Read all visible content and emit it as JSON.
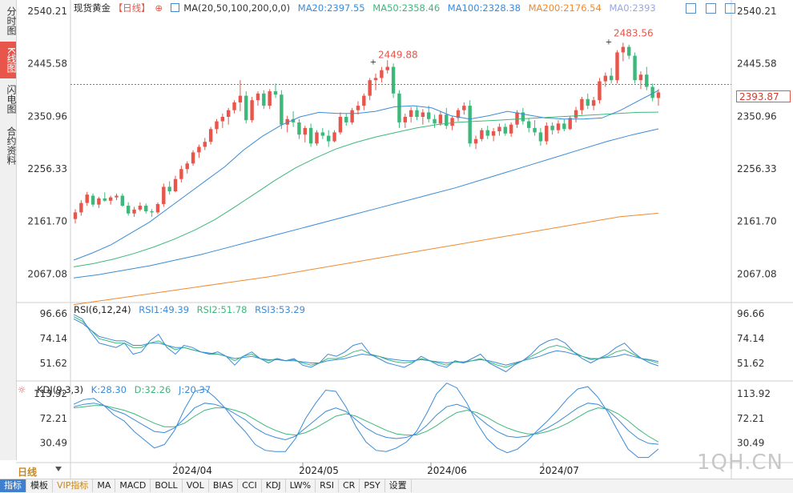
{
  "left_tabs": [
    {
      "label": "分时图",
      "active": false
    },
    {
      "label": "K线图",
      "active": true
    },
    {
      "label": "闪电图",
      "active": false
    },
    {
      "label": "合约资料",
      "active": false
    }
  ],
  "main_legend": {
    "name": "现货黄金",
    "period": "【日线】",
    "ma_label": "MA(20,50,100,200,0,0)",
    "ma20": "MA20:2397.55",
    "ma50": "MA50:2358.46",
    "ma100": "MA100:2328.38",
    "ma200": "MA200:2176.54",
    "ma0": "MA0:2393"
  },
  "rsi_legend": {
    "label": "RSI(6,12,24)",
    "rsi1": "RSI1:49.39",
    "rsi2": "RSI2:51.78",
    "rsi3": "RSI3:53.29"
  },
  "kdj_legend": {
    "label": "KDJ(9,3,3)",
    "k": "K:28.30",
    "d": "D:32.26",
    "j": "J:20.37"
  },
  "price_axis": [
    "2540.21",
    "2445.58",
    "2350.96",
    "2256.33",
    "2161.70",
    "2067.08"
  ],
  "rsi_axis": [
    "96.66",
    "74.14",
    "51.62"
  ],
  "kdj_axis": [
    "113.92",
    "72.21",
    "30.49"
  ],
  "x_axis": [
    "2024/04",
    "2024/05",
    "2024/06",
    "2024/07"
  ],
  "current_price": "2393.87",
  "high_marker": "2483.56",
  "mid_high_marker": "2449.88",
  "period_label": "日线",
  "bottom_tabs": [
    "指标",
    "模板",
    "VIP指标",
    "MA",
    "MACD",
    "BOLL",
    "VOL",
    "BIAS",
    "CCI",
    "KDJ",
    "LW%",
    "RSI",
    "CR",
    "PSY",
    "设置"
  ],
  "watermark": "1QH.CN",
  "colors": {
    "up": "#e8554a",
    "down": "#3db87a",
    "ma20": "#3b8bd8",
    "ma50": "#3db87a",
    "ma100": "#3b8bd8",
    "ma200": "#f08a30",
    "ma0": "#9aa7e0",
    "rsi1": "#3b8bd8",
    "rsi2": "#3db87a",
    "rsi3": "#3b8bd8"
  },
  "chart_data": {
    "type": "candlestick",
    "y_range": [
      2020,
      2540.21
    ],
    "candles": [
      [
        2166,
        2184,
        2158,
        2178
      ],
      [
        2178,
        2200,
        2172,
        2195
      ],
      [
        2195,
        2215,
        2190,
        2210
      ],
      [
        2208,
        2212,
        2188,
        2192
      ],
      [
        2192,
        2206,
        2186,
        2203
      ],
      [
        2203,
        2214,
        2197,
        2199
      ],
      [
        2199,
        2208,
        2192,
        2205
      ],
      [
        2205,
        2212,
        2200,
        2208
      ],
      [
        2208,
        2212,
        2188,
        2190
      ],
      [
        2190,
        2196,
        2172,
        2176
      ],
      [
        2176,
        2188,
        2170,
        2183
      ],
      [
        2183,
        2196,
        2180,
        2190
      ],
      [
        2190,
        2194,
        2176,
        2180
      ],
      [
        2180,
        2184,
        2170,
        2178
      ],
      [
        2178,
        2196,
        2175,
        2193
      ],
      [
        2193,
        2230,
        2188,
        2224
      ],
      [
        2224,
        2234,
        2210,
        2216
      ],
      [
        2216,
        2244,
        2214,
        2238
      ],
      [
        2238,
        2262,
        2232,
        2256
      ],
      [
        2256,
        2270,
        2248,
        2266
      ],
      [
        2266,
        2290,
        2262,
        2286
      ],
      [
        2286,
        2300,
        2276,
        2296
      ],
      [
        2296,
        2312,
        2290,
        2305
      ],
      [
        2305,
        2332,
        2300,
        2328
      ],
      [
        2328,
        2346,
        2320,
        2342
      ],
      [
        2342,
        2356,
        2330,
        2350
      ],
      [
        2350,
        2366,
        2336,
        2362
      ],
      [
        2362,
        2380,
        2356,
        2376
      ],
      [
        2376,
        2416,
        2360,
        2388
      ],
      [
        2388,
        2396,
        2338,
        2344
      ],
      [
        2344,
        2386,
        2340,
        2380
      ],
      [
        2380,
        2396,
        2370,
        2392
      ],
      [
        2392,
        2398,
        2364,
        2370
      ],
      [
        2370,
        2400,
        2364,
        2396
      ],
      [
        2396,
        2410,
        2384,
        2390
      ],
      [
        2390,
        2398,
        2328,
        2336
      ],
      [
        2336,
        2352,
        2322,
        2346
      ],
      [
        2346,
        2360,
        2332,
        2340
      ],
      [
        2340,
        2346,
        2310,
        2318
      ],
      [
        2318,
        2334,
        2304,
        2330
      ],
      [
        2330,
        2338,
        2296,
        2302
      ],
      [
        2302,
        2326,
        2298,
        2322
      ],
      [
        2322,
        2330,
        2310,
        2316
      ],
      [
        2316,
        2326,
        2296,
        2306
      ],
      [
        2306,
        2326,
        2304,
        2322
      ],
      [
        2322,
        2358,
        2318,
        2350
      ],
      [
        2350,
        2356,
        2334,
        2340
      ],
      [
        2340,
        2366,
        2336,
        2362
      ],
      [
        2362,
        2378,
        2354,
        2370
      ],
      [
        2370,
        2392,
        2362,
        2388
      ],
      [
        2388,
        2420,
        2380,
        2416
      ],
      [
        2416,
        2428,
        2398,
        2420
      ],
      [
        2420,
        2440,
        2412,
        2434
      ],
      [
        2434,
        2452,
        2428,
        2440
      ],
      [
        2440,
        2446,
        2384,
        2392
      ],
      [
        2392,
        2398,
        2330,
        2340
      ],
      [
        2340,
        2356,
        2330,
        2350
      ],
      [
        2350,
        2368,
        2340,
        2362
      ],
      [
        2362,
        2368,
        2344,
        2350
      ],
      [
        2350,
        2364,
        2336,
        2358
      ],
      [
        2358,
        2370,
        2340,
        2346
      ],
      [
        2346,
        2354,
        2330,
        2338
      ],
      [
        2338,
        2360,
        2334,
        2354
      ],
      [
        2354,
        2366,
        2328,
        2334
      ],
      [
        2334,
        2352,
        2326,
        2348
      ],
      [
        2348,
        2366,
        2342,
        2362
      ],
      [
        2362,
        2376,
        2354,
        2370
      ],
      [
        2370,
        2380,
        2296,
        2302
      ],
      [
        2302,
        2316,
        2292,
        2310
      ],
      [
        2310,
        2330,
        2306,
        2326
      ],
      [
        2326,
        2334,
        2310,
        2316
      ],
      [
        2316,
        2330,
        2306,
        2324
      ],
      [
        2324,
        2338,
        2316,
        2332
      ],
      [
        2332,
        2338,
        2316,
        2320
      ],
      [
        2320,
        2340,
        2314,
        2336
      ],
      [
        2336,
        2362,
        2330,
        2358
      ],
      [
        2358,
        2366,
        2336,
        2342
      ],
      [
        2342,
        2348,
        2322,
        2330
      ],
      [
        2330,
        2344,
        2316,
        2322
      ],
      [
        2322,
        2330,
        2298,
        2306
      ],
      [
        2306,
        2340,
        2300,
        2334
      ],
      [
        2334,
        2340,
        2318,
        2326
      ],
      [
        2326,
        2344,
        2320,
        2338
      ],
      [
        2338,
        2346,
        2324,
        2328
      ],
      [
        2328,
        2352,
        2326,
        2348
      ],
      [
        2348,
        2368,
        2340,
        2362
      ],
      [
        2362,
        2386,
        2354,
        2382
      ],
      [
        2382,
        2392,
        2364,
        2370
      ],
      [
        2370,
        2386,
        2362,
        2380
      ],
      [
        2380,
        2420,
        2374,
        2414
      ],
      [
        2414,
        2430,
        2404,
        2424
      ],
      [
        2424,
        2438,
        2410,
        2416
      ],
      [
        2416,
        2470,
        2410,
        2466
      ],
      [
        2466,
        2483.56,
        2450,
        2476
      ],
      [
        2476,
        2480,
        2454,
        2460
      ],
      [
        2460,
        2466,
        2410,
        2416
      ],
      [
        2416,
        2432,
        2400,
        2426
      ],
      [
        2426,
        2440,
        2398,
        2404
      ],
      [
        2404,
        2410,
        2378,
        2384
      ],
      [
        2384,
        2400,
        2370,
        2394
      ]
    ],
    "ma20": [
      2092,
      2105,
      2120,
      2140,
      2160,
      2185,
      2210,
      2235,
      2260,
      2290,
      2315,
      2335,
      2350,
      2358,
      2356,
      2356,
      2360,
      2368,
      2370,
      2366,
      2352,
      2346,
      2352,
      2360,
      2354,
      2348,
      2346,
      2346,
      2348,
      2362,
      2380,
      2397.55
    ],
    "ma50": [
      2080,
      2086,
      2094,
      2104,
      2116,
      2130,
      2146,
      2165,
      2188,
      2212,
      2236,
      2258,
      2276,
      2292,
      2304,
      2314,
      2322,
      2330,
      2336,
      2340,
      2342,
      2344,
      2346,
      2348,
      2350,
      2352,
      2354,
      2356,
      2358,
      2358.46
    ],
    "ma100": [
      2060,
      2066,
      2074,
      2082,
      2092,
      2102,
      2114,
      2126,
      2138,
      2150,
      2162,
      2174,
      2186,
      2198,
      2210,
      2222,
      2236,
      2250,
      2264,
      2278,
      2292,
      2306,
      2318,
      2328.38
    ],
    "ma200": [
      2012,
      2022,
      2032,
      2042,
      2052,
      2062,
      2074,
      2086,
      2098,
      2110,
      2122,
      2134,
      2146,
      2158,
      2170,
      2176.54
    ],
    "rsi1": [
      96,
      92,
      80,
      70,
      68,
      66,
      70,
      60,
      62,
      72,
      78,
      66,
      60,
      68,
      66,
      62,
      60,
      62,
      58,
      50,
      58,
      62,
      56,
      52,
      56,
      54,
      56,
      50,
      48,
      52,
      60,
      58,
      62,
      68,
      70,
      60,
      56,
      52,
      50,
      48,
      52,
      58,
      54,
      50,
      48,
      54,
      52,
      56,
      60,
      52,
      48,
      44,
      50,
      54,
      60,
      68,
      72,
      74,
      70,
      62,
      56,
      52,
      56,
      60,
      66,
      70,
      62,
      56,
      52,
      49.39
    ],
    "rsi2": [
      94,
      90,
      82,
      74,
      72,
      70,
      70,
      66,
      66,
      70,
      72,
      68,
      64,
      66,
      64,
      62,
      60,
      60,
      58,
      54,
      58,
      60,
      56,
      54,
      56,
      54,
      55,
      52,
      50,
      52,
      56,
      56,
      58,
      62,
      64,
      60,
      58,
      55,
      53,
      52,
      53,
      56,
      54,
      52,
      50,
      53,
      52,
      54,
      56,
      53,
      50,
      48,
      51,
      54,
      58,
      62,
      66,
      68,
      66,
      62,
      58,
      55,
      56,
      58,
      62,
      64,
      60,
      56,
      54,
      51.78
    ],
    "rsi3": [
      92,
      88,
      82,
      76,
      74,
      72,
      72,
      68,
      68,
      70,
      70,
      68,
      66,
      66,
      64,
      62,
      61,
      60,
      58,
      56,
      57,
      58,
      56,
      55,
      55,
      54,
      54,
      53,
      52,
      52,
      54,
      55,
      56,
      58,
      60,
      59,
      58,
      56,
      55,
      54,
      54,
      55,
      54,
      53,
      52,
      53,
      53,
      54,
      55,
      54,
      52,
      50,
      52,
      54,
      56,
      58,
      61,
      63,
      62,
      60,
      58,
      56,
      56,
      57,
      58,
      60,
      58,
      56,
      55,
      53.29
    ],
    "kdj_k": [
      92,
      96,
      98,
      94,
      86,
      80,
      70,
      60,
      50,
      48,
      56,
      72,
      90,
      98,
      96,
      90,
      80,
      70,
      56,
      46,
      40,
      36,
      42,
      56,
      70,
      84,
      90,
      84,
      70,
      56,
      46,
      40,
      38,
      40,
      46,
      60,
      78,
      92,
      96,
      90,
      76,
      62,
      50,
      42,
      40,
      42,
      48,
      56,
      66,
      78,
      90,
      98,
      96,
      86,
      70,
      52,
      38,
      30,
      28.3
    ],
    "kdj_d": [
      90,
      92,
      94,
      94,
      90,
      86,
      80,
      72,
      64,
      58,
      58,
      64,
      76,
      86,
      90,
      90,
      86,
      80,
      70,
      60,
      52,
      46,
      44,
      48,
      56,
      66,
      76,
      80,
      76,
      68,
      60,
      52,
      46,
      44,
      44,
      50,
      60,
      72,
      82,
      86,
      82,
      74,
      64,
      56,
      50,
      46,
      46,
      50,
      56,
      64,
      74,
      84,
      90,
      88,
      80,
      68,
      54,
      42,
      32.26
    ],
    "kdj_j": [
      96,
      104,
      106,
      94,
      78,
      68,
      50,
      36,
      22,
      28,
      52,
      88,
      118,
      122,
      108,
      90,
      68,
      50,
      28,
      18,
      16,
      16,
      38,
      72,
      98,
      120,
      118,
      92,
      58,
      32,
      18,
      16,
      22,
      32,
      50,
      80,
      114,
      132,
      124,
      98,
      64,
      38,
      22,
      14,
      20,
      34,
      52,
      68,
      86,
      106,
      122,
      126,
      108,
      82,
      50,
      20,
      6,
      6,
      20.37
    ]
  }
}
